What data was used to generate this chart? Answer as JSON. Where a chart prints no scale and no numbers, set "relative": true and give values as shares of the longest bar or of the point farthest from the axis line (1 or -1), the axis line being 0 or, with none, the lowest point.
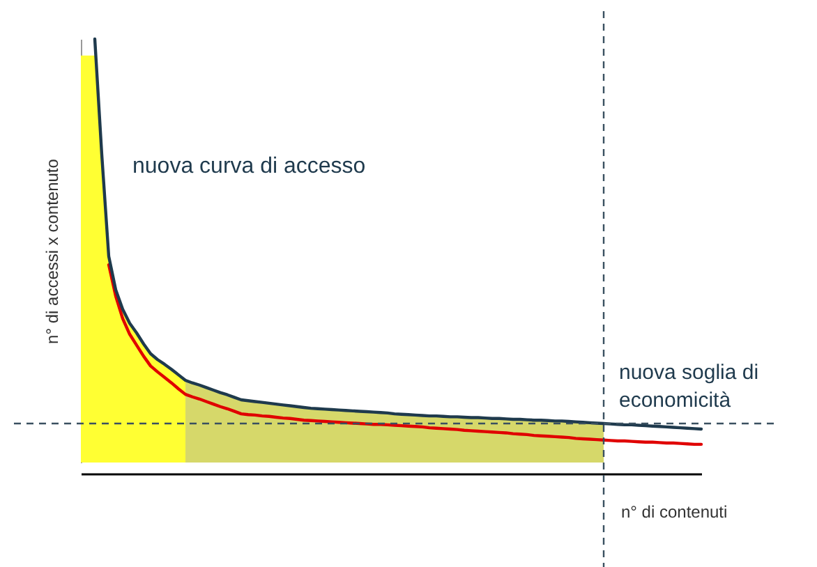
{
  "chart_data": {
    "type": "line",
    "relative": true,
    "xlabel": "n° di contenuti",
    "ylabel": "n° di accessi x contenuto",
    "categories": [
      null,
      null,
      null,
      null,
      null,
      null,
      null,
      null,
      null,
      null,
      null,
      null,
      null,
      null,
      null,
      null,
      null,
      null,
      null,
      null,
      null,
      null,
      null,
      null,
      null,
      null,
      null,
      null,
      null,
      null,
      null,
      null,
      null,
      null,
      null,
      null,
      null,
      null,
      null,
      null,
      null,
      null,
      null,
      null,
      null,
      null,
      null,
      null,
      null,
      null,
      null,
      null,
      null,
      null,
      null,
      null,
      null,
      null,
      null,
      null,
      null,
      null,
      null,
      null,
      null,
      null,
      null,
      null,
      null,
      null,
      null,
      null,
      null,
      null,
      null,
      null,
      null,
      null,
      null,
      null,
      null,
      null,
      null,
      null,
      null,
      null,
      null,
      null,
      null,
      null
    ],
    "series": [
      {
        "type": "area",
        "color": "#ffff33",
        "values": [
          0.961,
          0.961,
          0.961,
          0.727,
          0.487,
          0.408,
          0.362,
          0.329,
          0.306,
          0.28,
          0.257,
          0.243,
          0.232,
          0.22,
          0.207,
          0.194,
          null,
          null,
          null,
          null,
          null,
          null,
          null,
          null,
          null,
          null,
          null,
          null,
          null,
          null,
          null,
          null,
          null,
          null,
          null,
          null,
          null,
          null,
          null,
          null,
          null,
          null,
          null,
          null,
          null,
          null,
          null,
          null,
          null,
          null,
          null,
          null,
          null,
          null,
          null,
          null,
          null,
          null,
          null,
          null,
          null,
          null,
          null,
          null,
          null,
          null,
          null,
          null,
          null,
          null,
          null,
          null,
          null,
          null,
          null,
          null,
          null,
          null,
          null,
          null,
          null,
          null,
          null,
          null,
          null,
          null,
          null,
          null,
          null,
          null
        ]
      },
      {
        "type": "area",
        "color": "#d6d86a",
        "values": [
          null,
          null,
          null,
          null,
          null,
          null,
          null,
          null,
          null,
          null,
          null,
          null,
          null,
          null,
          null,
          0.194,
          0.188,
          0.183,
          0.177,
          0.171,
          0.165,
          0.16,
          0.154,
          0.148,
          0.146,
          0.144,
          0.142,
          0.14,
          0.138,
          0.136,
          0.134,
          0.132,
          0.13,
          0.128,
          0.127,
          0.126,
          0.125,
          0.124,
          0.123,
          0.122,
          0.121,
          0.12,
          0.119,
          0.118,
          0.117,
          0.115,
          0.114,
          0.113,
          0.112,
          0.111,
          0.11,
          0.11,
          0.109,
          0.108,
          0.108,
          0.107,
          0.106,
          0.106,
          0.105,
          0.104,
          0.104,
          0.103,
          0.102,
          0.102,
          0.101,
          0.1,
          0.1,
          0.099,
          0.098,
          0.098,
          0.097,
          0.096,
          0.095,
          0.094,
          0.093,
          0.092,
          null,
          null,
          null,
          null,
          null,
          null,
          null,
          null,
          null,
          null,
          null,
          null,
          null,
          null
        ]
      },
      {
        "color": "#e00000",
        "values": [
          null,
          null,
          null,
          null,
          0.467,
          0.393,
          0.34,
          0.303,
          0.277,
          0.251,
          0.228,
          0.214,
          0.201,
          0.188,
          0.174,
          0.161,
          0.155,
          0.15,
          0.144,
          0.138,
          0.132,
          0.127,
          0.121,
          0.115,
          0.113,
          0.112,
          0.11,
          0.109,
          0.107,
          0.105,
          0.104,
          0.102,
          0.1,
          0.099,
          0.098,
          0.097,
          0.096,
          0.095,
          0.094,
          0.093,
          0.092,
          0.091,
          0.09,
          0.09,
          0.089,
          0.088,
          0.087,
          0.086,
          0.085,
          0.084,
          0.082,
          0.081,
          0.08,
          0.079,
          0.078,
          0.076,
          0.075,
          0.074,
          0.073,
          0.072,
          0.071,
          0.07,
          0.068,
          0.067,
          0.066,
          0.064,
          0.063,
          0.062,
          0.061,
          0.06,
          0.059,
          0.057,
          0.056,
          0.055,
          0.054,
          0.053,
          0.052,
          0.051,
          0.051,
          0.05,
          0.049,
          0.048,
          0.048,
          0.047,
          0.046,
          0.046,
          0.045,
          0.044,
          0.043,
          0.043
        ]
      },
      {
        "name": "nuova curva di accesso",
        "color": "#1f3a4d",
        "values": [
          null,
          null,
          1.0,
          0.727,
          0.487,
          0.408,
          0.362,
          0.329,
          0.306,
          0.28,
          0.257,
          0.243,
          0.232,
          0.22,
          0.207,
          0.194,
          0.188,
          0.183,
          0.177,
          0.171,
          0.165,
          0.16,
          0.154,
          0.148,
          0.146,
          0.144,
          0.142,
          0.14,
          0.138,
          0.136,
          0.134,
          0.132,
          0.13,
          0.128,
          0.127,
          0.126,
          0.125,
          0.124,
          0.123,
          0.122,
          0.121,
          0.12,
          0.119,
          0.118,
          0.117,
          0.115,
          0.114,
          0.113,
          0.112,
          0.111,
          0.11,
          0.11,
          0.109,
          0.108,
          0.108,
          0.107,
          0.106,
          0.106,
          0.105,
          0.104,
          0.104,
          0.103,
          0.102,
          0.102,
          0.101,
          0.1,
          0.1,
          0.099,
          0.098,
          0.098,
          0.097,
          0.096,
          0.095,
          0.094,
          0.093,
          0.092,
          0.091,
          0.09,
          0.089,
          0.089,
          0.088,
          0.087,
          0.086,
          0.085,
          0.084,
          0.083,
          0.082,
          0.081,
          0.08,
          0.079
        ]
      }
    ],
    "ref_lines": [
      {
        "axis": "y",
        "value": 0.092,
        "label": "nuova soglia di\neconomicità",
        "color": "#3a5060",
        "line_style": "dashed"
      }
    ]
  }
}
